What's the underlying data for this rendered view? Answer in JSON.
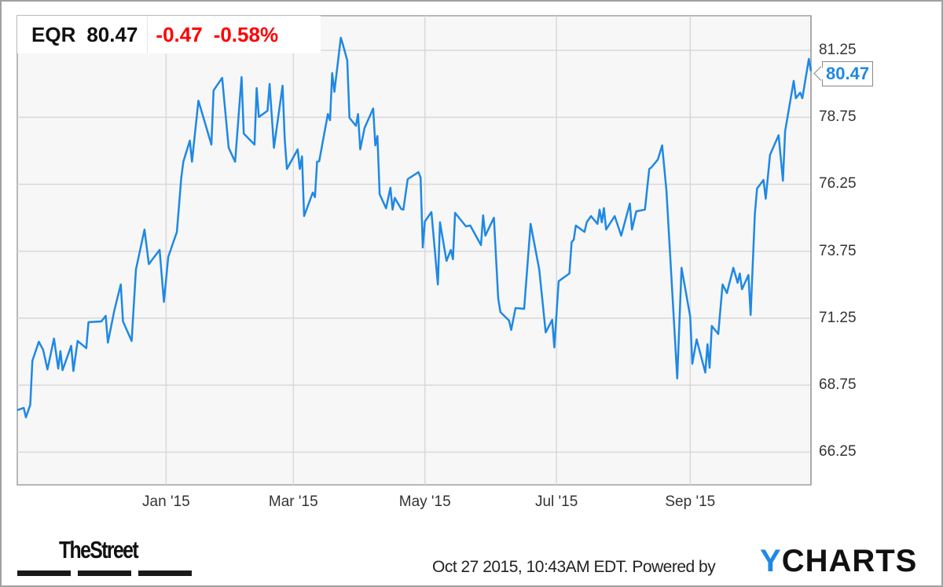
{
  "header": {
    "symbol": "EQR",
    "price": "80.47",
    "change": "-0.47",
    "change_pct": "-0.58%"
  },
  "last_price_label": "80.47",
  "footer": {
    "timestamp": "Oct 27 2015, 10:43AM EDT.",
    "powered_by": "Powered by",
    "brand_logo": "TheStreet",
    "ycharts_logo": "YCHARTS"
  },
  "colors": {
    "line": "#1e88e5",
    "negative": "#ff0000",
    "plot_bg": "#f7f7f7",
    "grid": "#d9d9d9"
  },
  "chart_data": {
    "type": "line",
    "title": "",
    "xlabel": "",
    "ylabel": "",
    "xlim": [
      "2014-10-24",
      "2015-10-27"
    ],
    "ylim": [
      65.03,
      82.54
    ],
    "grid": true,
    "y_axis_position": "right",
    "yticks": [
      66.25,
      68.75,
      71.25,
      73.75,
      76.25,
      78.75,
      81.25
    ],
    "ytick_labels": [
      "66.25",
      "68.75",
      "71.25",
      "73.75",
      "76.25",
      "78.75",
      "81.25"
    ],
    "xticks": [
      "2015-01-01",
      "2015-03-01",
      "2015-05-01",
      "2015-07-01",
      "2015-09-01"
    ],
    "xtick_labels": [
      "Jan '15",
      "Mar '15",
      "May '15",
      "Jul '15",
      "Sep '15"
    ],
    "series": [
      {
        "values": [
          [
            "2014-10-24",
            67.82
          ],
          [
            "2014-10-27",
            67.9
          ],
          [
            "2014-10-28",
            67.55
          ],
          [
            "2014-10-30",
            68.02
          ],
          [
            "2014-10-31",
            69.66
          ],
          [
            "2014-11-03",
            70.37
          ],
          [
            "2014-11-05",
            70.07
          ],
          [
            "2014-11-07",
            69.34
          ],
          [
            "2014-11-10",
            70.49
          ],
          [
            "2014-11-12",
            69.37
          ],
          [
            "2014-11-13",
            70.02
          ],
          [
            "2014-11-14",
            69.31
          ],
          [
            "2014-11-18",
            70.22
          ],
          [
            "2014-11-19",
            69.28
          ],
          [
            "2014-11-21",
            70.4
          ],
          [
            "2014-11-25",
            70.13
          ],
          [
            "2014-11-26",
            71.1
          ],
          [
            "2014-12-02",
            71.13
          ],
          [
            "2014-12-04",
            71.34
          ],
          [
            "2014-12-05",
            70.34
          ],
          [
            "2014-12-08",
            71.54
          ],
          [
            "2014-12-11",
            72.51
          ],
          [
            "2014-12-12",
            71.13
          ],
          [
            "2014-12-16",
            70.4
          ],
          [
            "2014-12-18",
            73.07
          ],
          [
            "2014-12-22",
            74.56
          ],
          [
            "2014-12-24",
            73.27
          ],
          [
            "2014-12-29",
            73.8
          ],
          [
            "2014-12-31",
            71.86
          ],
          [
            "2015-01-02",
            73.54
          ],
          [
            "2015-01-06",
            74.47
          ],
          [
            "2015-01-08",
            76.47
          ],
          [
            "2015-01-09",
            77.09
          ],
          [
            "2015-01-12",
            77.88
          ],
          [
            "2015-01-13",
            77.09
          ],
          [
            "2015-01-16",
            79.37
          ],
          [
            "2015-01-22",
            77.73
          ],
          [
            "2015-01-23",
            79.75
          ],
          [
            "2015-01-27",
            80.22
          ],
          [
            "2015-01-30",
            77.61
          ],
          [
            "2015-02-02",
            77.09
          ],
          [
            "2015-02-05",
            80.25
          ],
          [
            "2015-02-06",
            78.14
          ],
          [
            "2015-02-11",
            77.73
          ],
          [
            "2015-02-12",
            79.84
          ],
          [
            "2015-02-13",
            78.76
          ],
          [
            "2015-02-17",
            78.99
          ],
          [
            "2015-02-18",
            79.99
          ],
          [
            "2015-02-20",
            77.61
          ],
          [
            "2015-02-24",
            79.93
          ],
          [
            "2015-02-25",
            77.94
          ],
          [
            "2015-02-26",
            76.82
          ],
          [
            "2015-03-03",
            77.55
          ],
          [
            "2015-03-04",
            76.82
          ],
          [
            "2015-03-05",
            77.29
          ],
          [
            "2015-03-06",
            75.06
          ],
          [
            "2015-03-10",
            75.94
          ],
          [
            "2015-03-11",
            75.77
          ],
          [
            "2015-03-12",
            77.09
          ],
          [
            "2015-03-13",
            77.11
          ],
          [
            "2015-03-17",
            78.87
          ],
          [
            "2015-03-18",
            78.64
          ],
          [
            "2015-03-19",
            80.4
          ],
          [
            "2015-03-20",
            79.7
          ],
          [
            "2015-03-23",
            81.72
          ],
          [
            "2015-03-24",
            81.46
          ],
          [
            "2015-03-26",
            80.87
          ],
          [
            "2015-03-27",
            78.73
          ],
          [
            "2015-03-30",
            78.43
          ],
          [
            "2015-03-31",
            78.87
          ],
          [
            "2015-04-01",
            77.55
          ],
          [
            "2015-04-03",
            78.35
          ],
          [
            "2015-04-07",
            79.08
          ],
          [
            "2015-04-08",
            77.7
          ],
          [
            "2015-04-09",
            78.05
          ],
          [
            "2015-04-10",
            75.88
          ],
          [
            "2015-04-13",
            75.35
          ],
          [
            "2015-04-15",
            76.12
          ],
          [
            "2015-04-16",
            75.3
          ],
          [
            "2015-04-17",
            75.74
          ],
          [
            "2015-04-20",
            75.33
          ],
          [
            "2015-04-21",
            75.3
          ],
          [
            "2015-04-23",
            76.44
          ],
          [
            "2015-04-28",
            76.7
          ],
          [
            "2015-04-29",
            76.5
          ],
          [
            "2015-04-30",
            73.89
          ],
          [
            "2015-05-01",
            74.86
          ],
          [
            "2015-05-04",
            75.21
          ],
          [
            "2015-05-07",
            72.51
          ],
          [
            "2015-05-08",
            74.83
          ],
          [
            "2015-05-11",
            73.39
          ],
          [
            "2015-05-13",
            73.8
          ],
          [
            "2015-05-14",
            73.45
          ],
          [
            "2015-05-15",
            75.18
          ],
          [
            "2015-05-20",
            74.68
          ],
          [
            "2015-05-22",
            74.71
          ],
          [
            "2015-05-27",
            73.98
          ],
          [
            "2015-05-28",
            75.09
          ],
          [
            "2015-05-29",
            74.33
          ],
          [
            "2015-06-02",
            75.0
          ],
          [
            "2015-06-04",
            71.98
          ],
          [
            "2015-06-05",
            71.48
          ],
          [
            "2015-06-09",
            71.16
          ],
          [
            "2015-06-10",
            70.81
          ],
          [
            "2015-06-12",
            71.63
          ],
          [
            "2015-06-16",
            71.6
          ],
          [
            "2015-06-19",
            74.77
          ],
          [
            "2015-06-23",
            73.07
          ],
          [
            "2015-06-26",
            70.72
          ],
          [
            "2015-06-29",
            71.19
          ],
          [
            "2015-06-30",
            70.16
          ],
          [
            "2015-07-02",
            72.63
          ],
          [
            "2015-07-07",
            72.92
          ],
          [
            "2015-07-08",
            74.09
          ],
          [
            "2015-07-09",
            74.18
          ],
          [
            "2015-07-10",
            74.71
          ],
          [
            "2015-07-14",
            74.47
          ],
          [
            "2015-07-15",
            74.83
          ],
          [
            "2015-07-17",
            75.06
          ],
          [
            "2015-07-20",
            74.77
          ],
          [
            "2015-07-21",
            75.3
          ],
          [
            "2015-07-22",
            74.83
          ],
          [
            "2015-07-23",
            75.36
          ],
          [
            "2015-07-24",
            74.56
          ],
          [
            "2015-07-28",
            75.06
          ],
          [
            "2015-07-31",
            74.33
          ],
          [
            "2015-08-04",
            75.53
          ],
          [
            "2015-08-05",
            74.56
          ],
          [
            "2015-08-07",
            75.24
          ],
          [
            "2015-08-11",
            75.3
          ],
          [
            "2015-08-13",
            76.82
          ],
          [
            "2015-08-14",
            76.88
          ],
          [
            "2015-08-17",
            77.17
          ],
          [
            "2015-08-19",
            77.7
          ],
          [
            "2015-08-21",
            76.0
          ],
          [
            "2015-08-26",
            69.0
          ],
          [
            "2015-08-28",
            73.13
          ],
          [
            "2015-09-01",
            71.31
          ],
          [
            "2015-09-02",
            69.55
          ],
          [
            "2015-09-04",
            70.46
          ],
          [
            "2015-09-08",
            69.22
          ],
          [
            "2015-09-09",
            70.28
          ],
          [
            "2015-09-10",
            69.4
          ],
          [
            "2015-09-11",
            70.96
          ],
          [
            "2015-09-14",
            70.66
          ],
          [
            "2015-09-16",
            72.51
          ],
          [
            "2015-09-18",
            72.19
          ],
          [
            "2015-09-21",
            73.13
          ],
          [
            "2015-09-23",
            72.57
          ],
          [
            "2015-09-24",
            72.92
          ],
          [
            "2015-09-25",
            72.33
          ],
          [
            "2015-09-28",
            72.86
          ],
          [
            "2015-09-29",
            71.37
          ],
          [
            "2015-10-01",
            75.15
          ],
          [
            "2015-10-02",
            76.09
          ],
          [
            "2015-10-05",
            76.41
          ],
          [
            "2015-10-06",
            75.71
          ],
          [
            "2015-10-08",
            77.35
          ],
          [
            "2015-10-12",
            78.08
          ],
          [
            "2015-10-14",
            76.38
          ],
          [
            "2015-10-15",
            78.23
          ],
          [
            "2015-10-19",
            80.11
          ],
          [
            "2015-10-20",
            79.46
          ],
          [
            "2015-10-22",
            79.67
          ],
          [
            "2015-10-23",
            79.46
          ],
          [
            "2015-10-26",
            80.93
          ],
          [
            "2015-10-27",
            80.47
          ]
        ]
      }
    ]
  }
}
